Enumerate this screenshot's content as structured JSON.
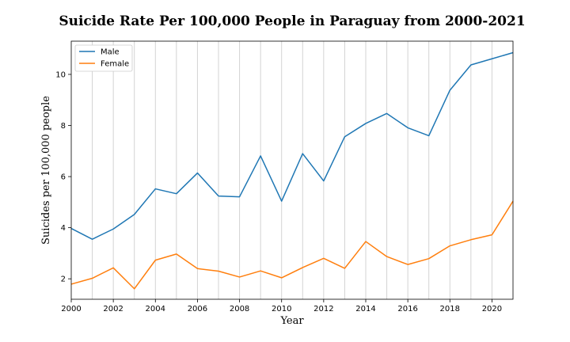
{
  "chart_data": {
    "type": "line",
    "title": "Suicide Rate Per 100,000 People in Paraguay from 2000-2021",
    "xlabel": "Year",
    "ylabel": "Suicides per 100,000 people",
    "x": [
      2000,
      2001,
      2002,
      2003,
      2004,
      2005,
      2006,
      2007,
      2008,
      2009,
      2010,
      2011,
      2012,
      2013,
      2014,
      2015,
      2016,
      2017,
      2018,
      2019,
      2020,
      2021
    ],
    "xlim": [
      2000,
      2021
    ],
    "ylim": [
      1.2,
      11.3
    ],
    "xticks": [
      "2000",
      "2002",
      "2004",
      "2006",
      "2008",
      "2010",
      "2012",
      "2014",
      "2016",
      "2018",
      "2020"
    ],
    "yticks": [
      "2",
      "4",
      "6",
      "8",
      "10"
    ],
    "grid": "vertical",
    "legend_position": "top-left",
    "series": [
      {
        "name": "Male",
        "color": "#1f77b4",
        "values": [
          3.97,
          3.55,
          3.95,
          4.52,
          5.52,
          5.33,
          6.14,
          5.24,
          5.21,
          6.81,
          5.04,
          6.9,
          5.83,
          7.56,
          8.08,
          8.47,
          7.91,
          7.6,
          9.38,
          10.37,
          10.61,
          10.85
        ]
      },
      {
        "name": "Female",
        "color": "#ff7f0e",
        "values": [
          1.79,
          2.02,
          2.43,
          1.61,
          2.73,
          2.97,
          2.4,
          2.3,
          2.07,
          2.31,
          2.04,
          2.44,
          2.8,
          2.41,
          3.46,
          2.87,
          2.56,
          2.79,
          3.29,
          3.53,
          3.72,
          5.04
        ]
      }
    ]
  }
}
